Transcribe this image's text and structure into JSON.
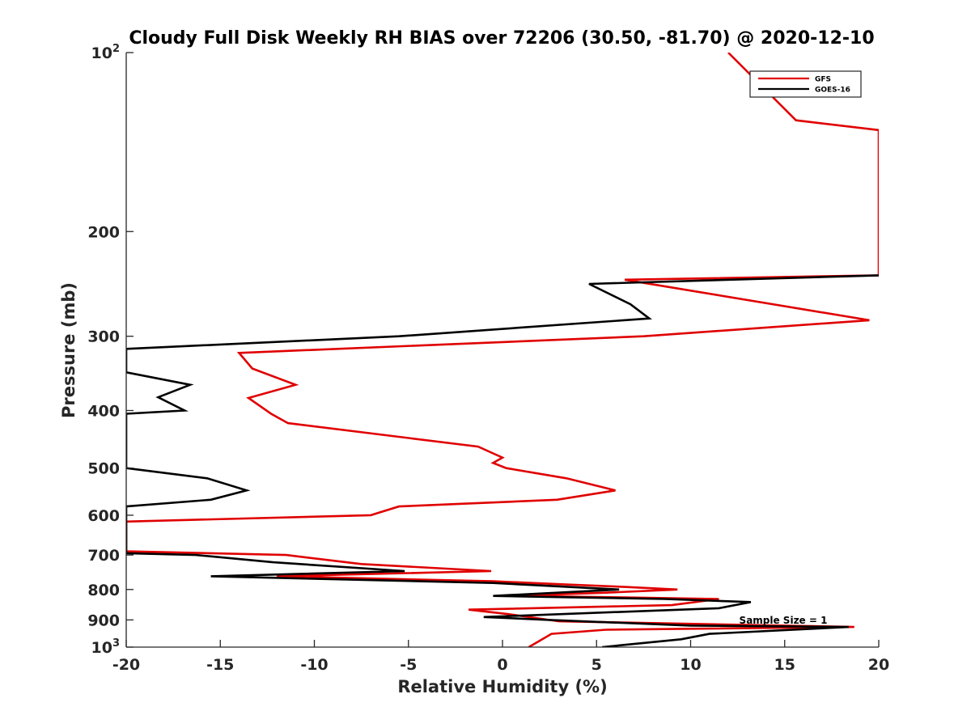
{
  "chart_data": {
    "type": "line",
    "title": "Cloudy Full Disk Weekly RH BIAS over 72206 (30.50, -81.70) @ 2020-12-10",
    "xlabel": "Relative Humidity (%)",
    "ylabel": "Pressure (mb)",
    "xlim": [
      -20,
      20
    ],
    "ylim": [
      100,
      1000
    ],
    "y_scale": "log",
    "y_reversed": true,
    "grid": false,
    "legend_position": "top-right",
    "annotation": "Sample Size = 1",
    "x_ticks": [
      "-20",
      "-15",
      "-10",
      "-5",
      "0",
      "5",
      "10",
      "15",
      "20"
    ],
    "y_ticks": [
      {
        "value": 100,
        "base": "10",
        "exp": "2"
      },
      {
        "value": 200,
        "base": "200",
        "exp": ""
      },
      {
        "value": 300,
        "base": "300",
        "exp": ""
      },
      {
        "value": 400,
        "base": "400",
        "exp": ""
      },
      {
        "value": 500,
        "base": "500",
        "exp": ""
      },
      {
        "value": 600,
        "base": "600",
        "exp": ""
      },
      {
        "value": 700,
        "base": "700",
        "exp": ""
      },
      {
        "value": 800,
        "base": "800",
        "exp": ""
      },
      {
        "value": 900,
        "base": "900",
        "exp": ""
      },
      {
        "value": 1000,
        "base": "10",
        "exp": "3"
      }
    ],
    "series": [
      {
        "name": "GFS",
        "color": "#e00000",
        "points": [
          [
            12,
            100
          ],
          [
            15.6,
            130
          ],
          [
            20,
            135
          ],
          [
            20,
            237
          ],
          [
            6.5,
            241
          ],
          [
            19.5,
            282
          ],
          [
            7.5,
            300
          ],
          [
            -14,
            320
          ],
          [
            -13.3,
            340
          ],
          [
            -11,
            362
          ],
          [
            -13.5,
            381
          ],
          [
            -12.3,
            405
          ],
          [
            -11.4,
            420
          ],
          [
            -1.3,
            460
          ],
          [
            0,
            480
          ],
          [
            -0.5,
            490
          ],
          [
            0.2,
            500
          ],
          [
            3.4,
            520
          ],
          [
            6,
            545
          ],
          [
            2.9,
            565
          ],
          [
            -5.5,
            580
          ],
          [
            -7,
            600
          ],
          [
            -20,
            615
          ],
          [
            -20,
            690
          ],
          [
            -11.5,
            700
          ],
          [
            -7.5,
            725
          ],
          [
            -0.6,
            745
          ],
          [
            -12,
            760
          ],
          [
            -0.5,
            775
          ],
          [
            3.5,
            785
          ],
          [
            6.5,
            792
          ],
          [
            9.3,
            800
          ],
          [
            5.5,
            810
          ],
          [
            0.5,
            820
          ],
          [
            6.5,
            825
          ],
          [
            11.5,
            830
          ],
          [
            9,
            850
          ],
          [
            -1.8,
            865
          ],
          [
            0.3,
            880
          ],
          [
            3,
            905
          ],
          [
            18.7,
            925
          ],
          [
            5.5,
            935
          ],
          [
            2.6,
            950
          ],
          [
            1.4,
            1000
          ]
        ]
      },
      {
        "name": "GOES-16",
        "color": "#000000",
        "points": [
          [
            20,
            237
          ],
          [
            4.6,
            245
          ],
          [
            6.8,
            265
          ],
          [
            7.8,
            280
          ],
          [
            -5.5,
            300
          ],
          [
            -20,
            315
          ],
          [
            -20,
            345
          ],
          [
            -16.6,
            362
          ],
          [
            -18.3,
            380
          ],
          [
            -16.9,
            400
          ],
          [
            -20,
            405
          ],
          [
            -20,
            500
          ],
          [
            -15.7,
            520
          ],
          [
            -13.6,
            545
          ],
          [
            -15.5,
            565
          ],
          [
            -20,
            580
          ],
          [
            -20,
            695
          ],
          [
            -16.3,
            700
          ],
          [
            -12.2,
            720
          ],
          [
            -5.2,
            745
          ],
          [
            -15.5,
            760
          ],
          [
            -0.5,
            780
          ],
          [
            6.2,
            800
          ],
          [
            -0.5,
            820
          ],
          [
            8.6,
            830
          ],
          [
            13.2,
            840
          ],
          [
            11.5,
            860
          ],
          [
            -1,
            890
          ],
          [
            2.5,
            900
          ],
          [
            10,
            920
          ],
          [
            18.4,
            925
          ],
          [
            11,
            950
          ],
          [
            9.5,
            970
          ],
          [
            5.3,
            1000
          ]
        ]
      }
    ]
  }
}
